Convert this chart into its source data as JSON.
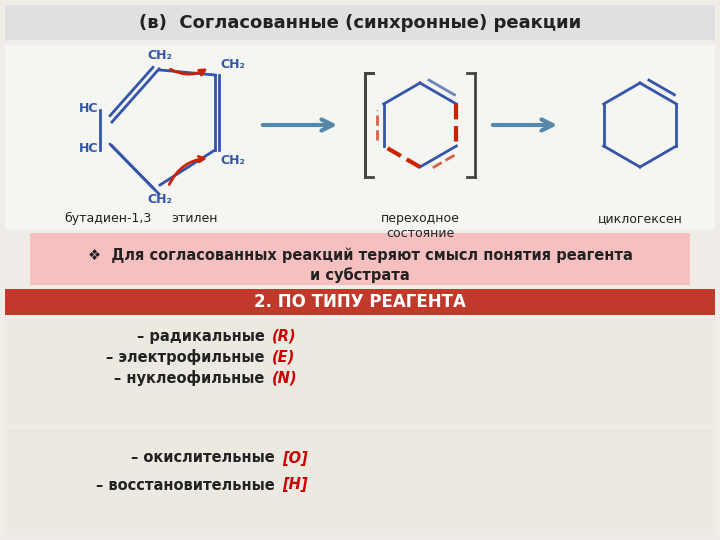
{
  "title": "(в)  Согласованные (синхронные) реакции",
  "title_bg": "#e0e0e0",
  "title_color": "#222222",
  "reaction_bg": "#f5f5f5",
  "label1": "бутадиен-1,3",
  "label2": "этилен",
  "label3": "переходное\nсостояние",
  "label4": "циклогексен",
  "note_bg": "#f7c0c0",
  "note_text1": "❖  Для согласованных реакций теряют смысл понятия реагента",
  "note_text2": "и субстрата",
  "banner_bg": "#c0392b",
  "banner_text": "2. ПО ТИПУ РЕАГЕНТА",
  "banner_text_color": "#ffffff",
  "section1_bg": "#ece9e0",
  "section1_lines": [
    [
      "– радикальные ",
      "(R)",
      "#222222",
      "#cc0000"
    ],
    [
      "– электрофильные ",
      "(E)",
      "#222222",
      "#cc0000"
    ],
    [
      "– нуклеофильные ",
      "(N)",
      "#222222",
      "#cc0000"
    ]
  ],
  "section2_bg": "#ece9e0",
  "section2_lines": [
    [
      "– окислительные ",
      "[O]",
      "#222222",
      "#cc0000"
    ],
    [
      "– восстановительные ",
      "[H]",
      "#222222",
      "#cc0000"
    ]
  ],
  "blue": "#3355aa",
  "red": "#cc2200",
  "steelblue": "#5588aa"
}
